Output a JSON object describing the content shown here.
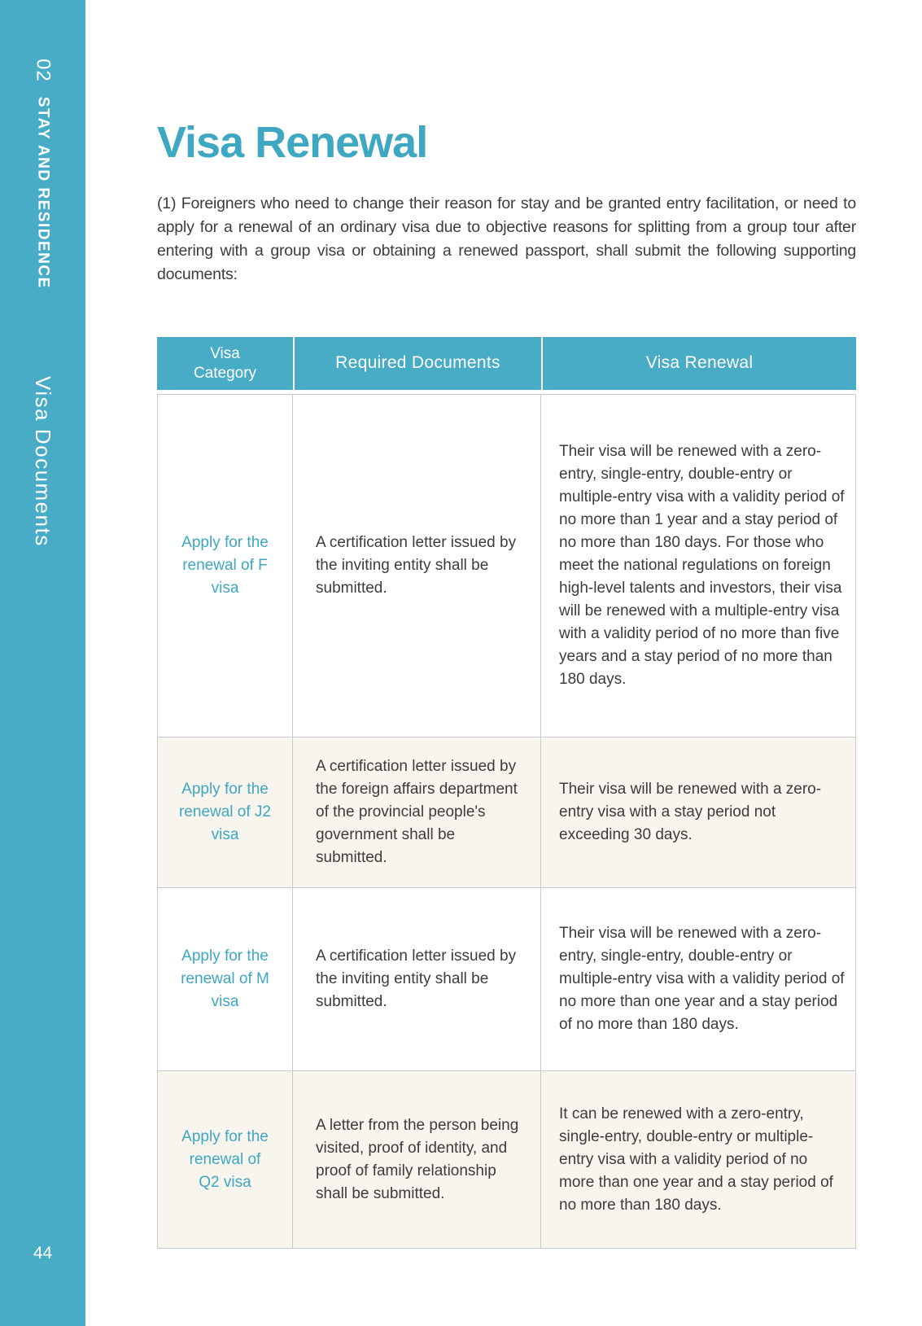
{
  "colors": {
    "accent_teal_bg": "#48acc6",
    "accent_teal_text": "#3ea7c1",
    "alt_row_bg": "#f8f4ee",
    "table_border": "#c6cbce",
    "body_text": "#3c3c3c"
  },
  "sidebar": {
    "chapter_number": "02",
    "chapter_title": "STAY AND RESIDENCE",
    "section_title": "Visa Documents",
    "page_number": "44"
  },
  "content": {
    "title": "Visa Renewal",
    "intro": "(1) Foreigners who need to change their reason for stay and be granted entry facilitation, or need to apply for a renewal of an ordinary visa due to objective reasons for splitting from a group tour after entering with a group visa or obtaining a renewed passport, shall submit the following supporting documents:"
  },
  "table": {
    "headers": [
      "Visa Category",
      "Required Documents",
      "Visa Renewal"
    ],
    "rows": [
      {
        "category": "Apply for the renewal of F visa",
        "documents": "A certification letter issued by the inviting entity shall be submitted.",
        "renewal": "Their visa will be renewed with a zero-entry, single-entry, double-entry or multiple-entry visa with a validity period of no more than 1 year and a stay period of no more than 180 days. For those who meet the national regulations on foreign high-level talents and investors, their visa will be renewed with a multiple-entry visa with a validity period of no more than five years and a stay period of no more than 180 days."
      },
      {
        "category": "Apply for the renewal of J2 visa",
        "documents": "A certification letter issued by the foreign affairs department of the provincial people's government shall be submitted.",
        "renewal": "Their visa will be renewed with a zero-entry visa with a stay period not exceeding 30 days."
      },
      {
        "category": "Apply for the renewal of M visa",
        "documents": "A certification letter issued by the inviting entity shall be submitted.",
        "renewal": "Their visa will be renewed with a zero-entry, single-entry, double-entry or multiple-entry visa with a validity period of no more than one year and a stay period of no more than 180 days."
      },
      {
        "category": "Apply for the renewal of Q2 visa",
        "documents": "A letter from the person being visited, proof of identity, and proof of family relationship shall be submitted.",
        "renewal": "It can be renewed with a zero-entry, single-entry, double-entry or multiple-entry visa with a validity period of no more than one year and a stay period of no more than 180 days."
      }
    ]
  }
}
